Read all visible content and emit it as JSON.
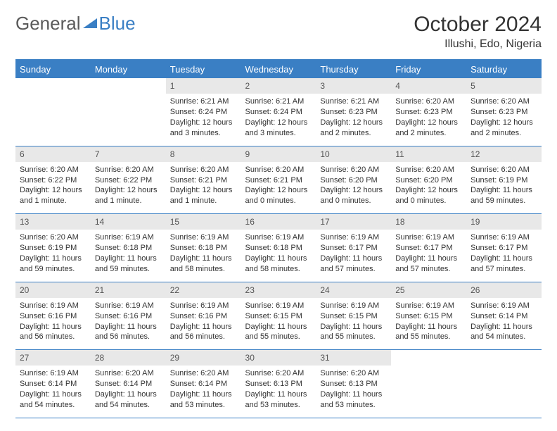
{
  "brand": {
    "part1": "General",
    "part2": "Blue",
    "triangle_color": "#3a7fc4"
  },
  "title": "October 2024",
  "location": "Illushi, Edo, Nigeria",
  "header_bg": "#3a7fc4",
  "header_fg": "#ffffff",
  "daynum_bg": "#e8e8e8",
  "border_color": "#3a7fc4",
  "day_names": [
    "Sunday",
    "Monday",
    "Tuesday",
    "Wednesday",
    "Thursday",
    "Friday",
    "Saturday"
  ],
  "weeks": [
    [
      {
        "n": "",
        "sr": "",
        "ss": "",
        "dl": ""
      },
      {
        "n": "",
        "sr": "",
        "ss": "",
        "dl": ""
      },
      {
        "n": "1",
        "sr": "Sunrise: 6:21 AM",
        "ss": "Sunset: 6:24 PM",
        "dl": "Daylight: 12 hours and 3 minutes."
      },
      {
        "n": "2",
        "sr": "Sunrise: 6:21 AM",
        "ss": "Sunset: 6:24 PM",
        "dl": "Daylight: 12 hours and 3 minutes."
      },
      {
        "n": "3",
        "sr": "Sunrise: 6:21 AM",
        "ss": "Sunset: 6:23 PM",
        "dl": "Daylight: 12 hours and 2 minutes."
      },
      {
        "n": "4",
        "sr": "Sunrise: 6:20 AM",
        "ss": "Sunset: 6:23 PM",
        "dl": "Daylight: 12 hours and 2 minutes."
      },
      {
        "n": "5",
        "sr": "Sunrise: 6:20 AM",
        "ss": "Sunset: 6:23 PM",
        "dl": "Daylight: 12 hours and 2 minutes."
      }
    ],
    [
      {
        "n": "6",
        "sr": "Sunrise: 6:20 AM",
        "ss": "Sunset: 6:22 PM",
        "dl": "Daylight: 12 hours and 1 minute."
      },
      {
        "n": "7",
        "sr": "Sunrise: 6:20 AM",
        "ss": "Sunset: 6:22 PM",
        "dl": "Daylight: 12 hours and 1 minute."
      },
      {
        "n": "8",
        "sr": "Sunrise: 6:20 AM",
        "ss": "Sunset: 6:21 PM",
        "dl": "Daylight: 12 hours and 1 minute."
      },
      {
        "n": "9",
        "sr": "Sunrise: 6:20 AM",
        "ss": "Sunset: 6:21 PM",
        "dl": "Daylight: 12 hours and 0 minutes."
      },
      {
        "n": "10",
        "sr": "Sunrise: 6:20 AM",
        "ss": "Sunset: 6:20 PM",
        "dl": "Daylight: 12 hours and 0 minutes."
      },
      {
        "n": "11",
        "sr": "Sunrise: 6:20 AM",
        "ss": "Sunset: 6:20 PM",
        "dl": "Daylight: 12 hours and 0 minutes."
      },
      {
        "n": "12",
        "sr": "Sunrise: 6:20 AM",
        "ss": "Sunset: 6:19 PM",
        "dl": "Daylight: 11 hours and 59 minutes."
      }
    ],
    [
      {
        "n": "13",
        "sr": "Sunrise: 6:20 AM",
        "ss": "Sunset: 6:19 PM",
        "dl": "Daylight: 11 hours and 59 minutes."
      },
      {
        "n": "14",
        "sr": "Sunrise: 6:19 AM",
        "ss": "Sunset: 6:18 PM",
        "dl": "Daylight: 11 hours and 59 minutes."
      },
      {
        "n": "15",
        "sr": "Sunrise: 6:19 AM",
        "ss": "Sunset: 6:18 PM",
        "dl": "Daylight: 11 hours and 58 minutes."
      },
      {
        "n": "16",
        "sr": "Sunrise: 6:19 AM",
        "ss": "Sunset: 6:18 PM",
        "dl": "Daylight: 11 hours and 58 minutes."
      },
      {
        "n": "17",
        "sr": "Sunrise: 6:19 AM",
        "ss": "Sunset: 6:17 PM",
        "dl": "Daylight: 11 hours and 57 minutes."
      },
      {
        "n": "18",
        "sr": "Sunrise: 6:19 AM",
        "ss": "Sunset: 6:17 PM",
        "dl": "Daylight: 11 hours and 57 minutes."
      },
      {
        "n": "19",
        "sr": "Sunrise: 6:19 AM",
        "ss": "Sunset: 6:17 PM",
        "dl": "Daylight: 11 hours and 57 minutes."
      }
    ],
    [
      {
        "n": "20",
        "sr": "Sunrise: 6:19 AM",
        "ss": "Sunset: 6:16 PM",
        "dl": "Daylight: 11 hours and 56 minutes."
      },
      {
        "n": "21",
        "sr": "Sunrise: 6:19 AM",
        "ss": "Sunset: 6:16 PM",
        "dl": "Daylight: 11 hours and 56 minutes."
      },
      {
        "n": "22",
        "sr": "Sunrise: 6:19 AM",
        "ss": "Sunset: 6:16 PM",
        "dl": "Daylight: 11 hours and 56 minutes."
      },
      {
        "n": "23",
        "sr": "Sunrise: 6:19 AM",
        "ss": "Sunset: 6:15 PM",
        "dl": "Daylight: 11 hours and 55 minutes."
      },
      {
        "n": "24",
        "sr": "Sunrise: 6:19 AM",
        "ss": "Sunset: 6:15 PM",
        "dl": "Daylight: 11 hours and 55 minutes."
      },
      {
        "n": "25",
        "sr": "Sunrise: 6:19 AM",
        "ss": "Sunset: 6:15 PM",
        "dl": "Daylight: 11 hours and 55 minutes."
      },
      {
        "n": "26",
        "sr": "Sunrise: 6:19 AM",
        "ss": "Sunset: 6:14 PM",
        "dl": "Daylight: 11 hours and 54 minutes."
      }
    ],
    [
      {
        "n": "27",
        "sr": "Sunrise: 6:19 AM",
        "ss": "Sunset: 6:14 PM",
        "dl": "Daylight: 11 hours and 54 minutes."
      },
      {
        "n": "28",
        "sr": "Sunrise: 6:20 AM",
        "ss": "Sunset: 6:14 PM",
        "dl": "Daylight: 11 hours and 54 minutes."
      },
      {
        "n": "29",
        "sr": "Sunrise: 6:20 AM",
        "ss": "Sunset: 6:14 PM",
        "dl": "Daylight: 11 hours and 53 minutes."
      },
      {
        "n": "30",
        "sr": "Sunrise: 6:20 AM",
        "ss": "Sunset: 6:13 PM",
        "dl": "Daylight: 11 hours and 53 minutes."
      },
      {
        "n": "31",
        "sr": "Sunrise: 6:20 AM",
        "ss": "Sunset: 6:13 PM",
        "dl": "Daylight: 11 hours and 53 minutes."
      },
      {
        "n": "",
        "sr": "",
        "ss": "",
        "dl": ""
      },
      {
        "n": "",
        "sr": "",
        "ss": "",
        "dl": ""
      }
    ]
  ]
}
